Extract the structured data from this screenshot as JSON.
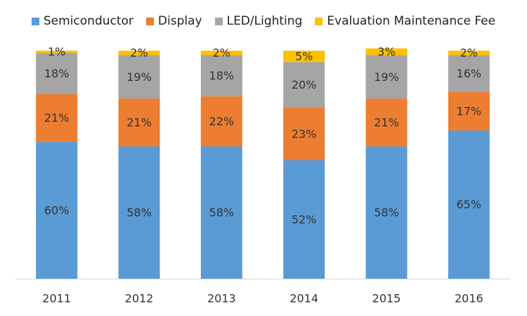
{
  "chart_data": {
    "type": "bar",
    "stacked": true,
    "title": "",
    "xlabel": "",
    "ylabel": "",
    "ylim": [
      0,
      100
    ],
    "grid": false,
    "legend_position": "top",
    "categories": [
      "2011",
      "2012",
      "2013",
      "2014",
      "2015",
      "2016"
    ],
    "series": [
      {
        "name": "Semiconductor",
        "color": "#5b9bd5",
        "values": [
          60,
          58,
          58,
          52,
          58,
          65
        ],
        "labels": [
          "60%",
          "58%",
          "58%",
          "52%",
          "58%",
          "65%"
        ]
      },
      {
        "name": "Display",
        "color": "#ed7d31",
        "values": [
          21,
          21,
          22,
          23,
          21,
          17
        ],
        "labels": [
          "21%",
          "21%",
          "22%",
          "23%",
          "21%",
          "17%"
        ]
      },
      {
        "name": "LED/Lighting",
        "color": "#a5a5a5",
        "values": [
          18,
          19,
          18,
          20,
          19,
          16
        ],
        "labels": [
          "18%",
          "19%",
          "18%",
          "20%",
          "19%",
          "16%"
        ]
      },
      {
        "name": "Evaluation Maintenance Fee",
        "color": "#ffc000",
        "values": [
          1,
          2,
          2,
          5,
          3,
          2
        ],
        "labels": [
          "1%",
          "2%",
          "2%",
          "5%",
          "3%",
          "2%"
        ]
      }
    ]
  }
}
